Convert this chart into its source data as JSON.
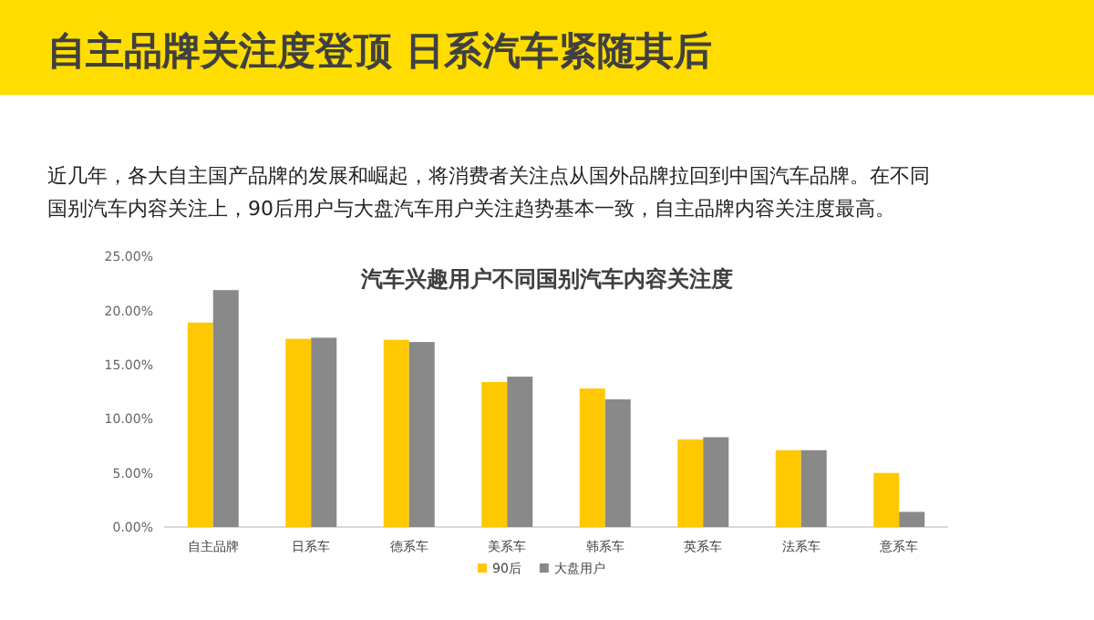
{
  "chart_data": {
    "type": "bar",
    "title": "自主品牌关注度登顶  日系汽车紧随其后",
    "subtitle": "近几年，各大自主国产品牌的发展和崛起，将消费者关注点从国外品牌拉回到中国汽车品牌。在不同国别汽车内容关注上，90后用户与大盘汽车用户关注趋势基本一致，自主品牌内容关注度最高。",
    "annotations": [
      "汽车兴趣用户不同国别汽车内容关注度"
    ],
    "categories": [
      "自主品牌",
      "日系车",
      "德系车",
      "美系车",
      "韩系车",
      "英系车",
      "法系车",
      "意系车"
    ],
    "series": [
      {
        "name": "90后",
        "color": "#ffc800",
        "values": [
          18.9,
          17.4,
          17.3,
          13.4,
          12.8,
          8.1,
          7.1,
          5.0
        ]
      },
      {
        "name": "大盘用户",
        "color": "#898989",
        "values": [
          21.9,
          17.5,
          17.1,
          13.9,
          11.8,
          8.3,
          7.1,
          1.4
        ]
      }
    ],
    "ylim": [
      0,
      25
    ],
    "yticks": [
      {
        "value": 0,
        "label": "0.00%"
      },
      {
        "value": 5,
        "label": "5.00%"
      },
      {
        "value": 10,
        "label": "10.00%"
      },
      {
        "value": 15,
        "label": "15.00%"
      },
      {
        "value": 20,
        "label": "20.00%"
      },
      {
        "value": 25,
        "label": "25.00%"
      }
    ],
    "grid": false,
    "legend": "bottom"
  }
}
